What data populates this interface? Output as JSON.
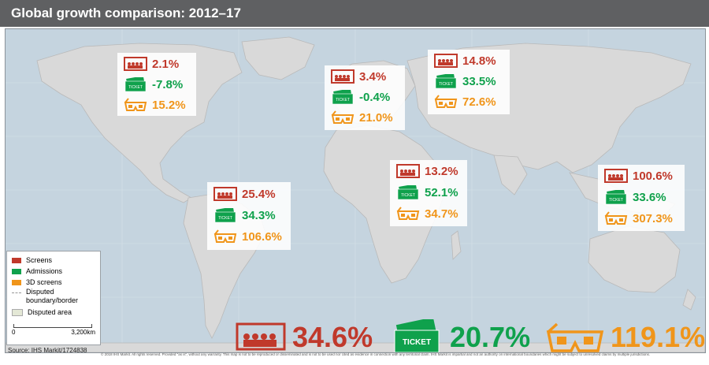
{
  "title": "Global growth comparison: 2012–17",
  "colors": {
    "screens": "#c0392b",
    "admissions": "#0fa14c",
    "screens_3d": "#f0951a",
    "header": "#5f6062",
    "ocean": "#c5d4df",
    "land": "#d9d9d9"
  },
  "icons": {
    "screens": "cinema-screen-icon",
    "admissions": "ticket-icon",
    "screens_3d": "3d-glasses-icon"
  },
  "regions": [
    {
      "screens": "2.1%",
      "admissions": "-7.8%",
      "screens_3d": "15.2%"
    },
    {
      "screens": "3.4%",
      "admissions": "-0.4%",
      "screens_3d": "21.0%"
    },
    {
      "screens": "14.8%",
      "admissions": "33.5%",
      "screens_3d": "72.6%"
    },
    {
      "screens": "25.4%",
      "admissions": "34.3%",
      "screens_3d": "106.6%"
    },
    {
      "screens": "13.2%",
      "admissions": "52.1%",
      "screens_3d": "34.7%"
    },
    {
      "screens": "100.6%",
      "admissions": "33.6%",
      "screens_3d": "307.3%"
    }
  ],
  "global": {
    "screens": "34.6%",
    "admissions": "20.7%",
    "screens_3d": "119.1%"
  },
  "ticket_text": "TICKET",
  "legend": {
    "screens": "Screens",
    "admissions": "Admissions",
    "screens_3d": "3D screens",
    "disputed_border": "Disputed boundary/border",
    "disputed_area": "Disputed area",
    "scale_min": "0",
    "scale_max": "3,200km"
  },
  "source": "Source: IHS Markit/1724838",
  "copyright": "© 2018 IHS Markit. All rights reserved. Provided \"as is\", without any warranty. This map is not to be reproduced or disseminated and is not to be used nor cited as evidence in connection with any territorial claim. IHS Markit is impartial and not an authority on international boundaries which might be subject to unresolved claims by multiple jurisdictions."
}
